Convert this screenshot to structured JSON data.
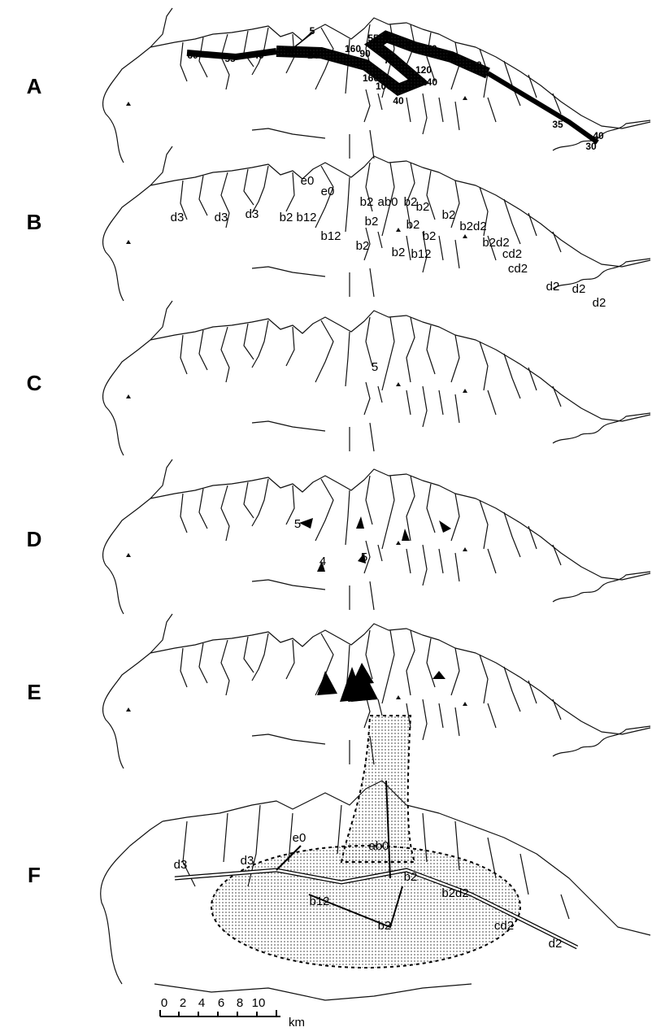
{
  "panels": [
    {
      "label": "A",
      "annotations": [
        60,
        55,
        40,
        90,
        5,
        140,
        160,
        55,
        80,
        90,
        70,
        70,
        55,
        40,
        75,
        120,
        160,
        100,
        140,
        40,
        35,
        40,
        30
      ]
    },
    {
      "label": "B",
      "annotations": [
        "e0",
        "e0",
        "d3",
        "d3",
        "d3",
        "b2",
        "b12",
        "b12",
        "b2",
        "ab0",
        "b2",
        "b2",
        "b2",
        "b2",
        "b2",
        "b2d2",
        "b2",
        "b2d2",
        "cd2",
        "b2",
        "b2",
        "b12",
        "cd2",
        "d2",
        "d2",
        "d2"
      ]
    },
    {
      "label": "C",
      "annotations": [
        5
      ]
    },
    {
      "label": "D",
      "annotations": [
        5,
        4,
        5
      ]
    },
    {
      "label": "E"
    },
    {
      "label": "F",
      "annotations": [
        "d3",
        "d3",
        "e0",
        "ab0",
        "b2",
        "b12",
        "b2d2",
        "b2",
        "cd2",
        "d2"
      ]
    }
  ],
  "scale_bar": {
    "ticks": [
      0,
      2,
      4,
      6,
      8,
      10
    ],
    "unit": "km"
  }
}
